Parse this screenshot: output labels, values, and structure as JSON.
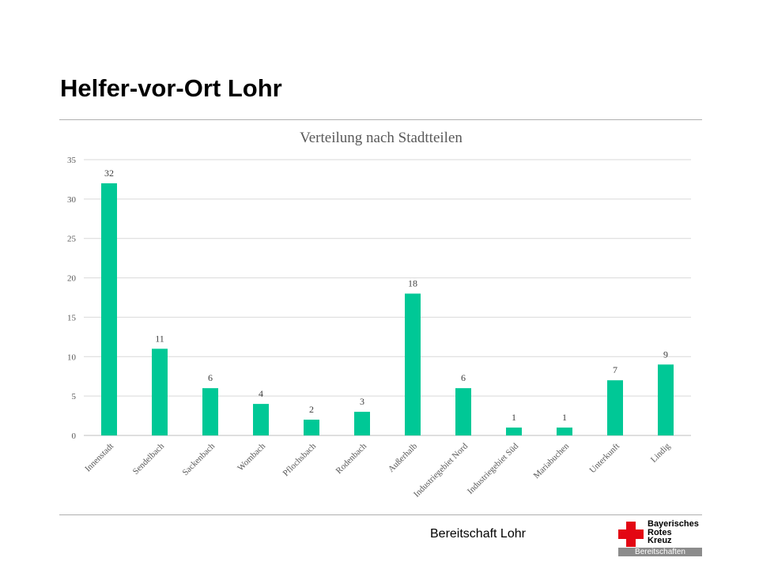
{
  "slide": {
    "title": "Helfer-vor-Ort Lohr",
    "footer": "Bereitschaft Lohr",
    "logo": {
      "line1": "Bayerisches",
      "line2": "Rotes",
      "line3": "Kreuz",
      "bar": "Bereitschaften",
      "cross_color": "#e30613"
    }
  },
  "chart_data": {
    "type": "bar",
    "title": "Verteilung nach Stadtteilen",
    "xlabel": "",
    "ylabel": "",
    "categories": [
      "Innenstadt",
      "Sendelbach",
      "Sackenbach",
      "Wombach",
      "Pflochsbach",
      "Rodenbach",
      "Außerhalb",
      "Industriegebiet Nord",
      "Industriegebiet Süd",
      "Mariabuchen",
      "Unterkunft",
      "Lindig"
    ],
    "values": [
      32,
      11,
      6,
      4,
      2,
      3,
      18,
      6,
      1,
      1,
      7,
      9
    ],
    "ylim": [
      0,
      35
    ],
    "yticks": [
      0,
      5,
      10,
      15,
      20,
      25,
      30,
      35
    ],
    "grid": true,
    "data_labels": true,
    "legend": "none",
    "bar_color": "#00c896"
  }
}
